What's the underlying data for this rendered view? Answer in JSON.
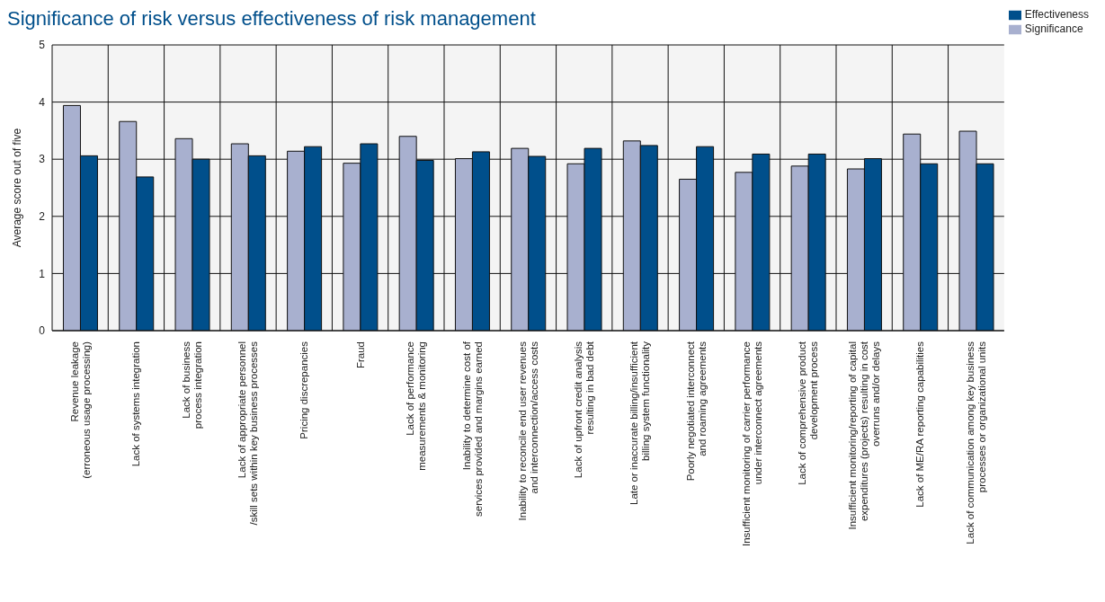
{
  "chart_data": {
    "type": "bar",
    "title": "Significance of risk versus effectiveness of risk management",
    "ylabel": "Average score out of five",
    "categories": [
      "Revenue leakage\n(erroneous usage processing)",
      "Lack of systems integration",
      "Lack of business\nprocess integration",
      "Lack of appropriate personnel\n/skill sets within key business processes",
      "Pricing discrepancies",
      "Fraud",
      "Lack of performance\nmeasurements & monitoring",
      "Inability to determine cost of\nservices provided and margins earned",
      "Inability to reconcile end user revenues\nand interconnection/access costs",
      "Lack of upfront credit analysis\nresulting in bad debt",
      "Late or inaccurate billing/insufficient\nbilling system functionality",
      "Poorly negotiated interconnect\nand roaming agreements",
      "Insufficient monitoring of carrier performance\nunder interconnect agreements",
      "Lack of comprehensive product\ndevelopment process",
      "Insufficient monitoring/reporting of capital\nexpenditures (projects) resulting in cost\noverruns and/or delays",
      "Lack of ME/RA reporting capabilities",
      "Lack of communication among key business\nprocesses or organizational units"
    ],
    "series": [
      {
        "name": "Significance",
        "color": "#a8b0cf",
        "values": [
          3.94,
          3.66,
          3.36,
          3.27,
          3.14,
          2.93,
          3.4,
          3.01,
          3.19,
          2.92,
          3.32,
          2.65,
          2.77,
          2.88,
          2.83,
          3.44,
          3.49
        ]
      },
      {
        "name": "Effectiveness",
        "color": "#004f8b",
        "values": [
          3.06,
          2.69,
          3.0,
          3.06,
          3.22,
          3.27,
          2.98,
          3.13,
          3.05,
          3.19,
          3.24,
          3.22,
          3.09,
          3.09,
          3.01,
          2.92,
          2.92
        ]
      }
    ],
    "ylim": [
      0,
      5
    ],
    "yticks": [
      0,
      1,
      2,
      3,
      4,
      5
    ],
    "grid": true,
    "legend": "top right"
  }
}
